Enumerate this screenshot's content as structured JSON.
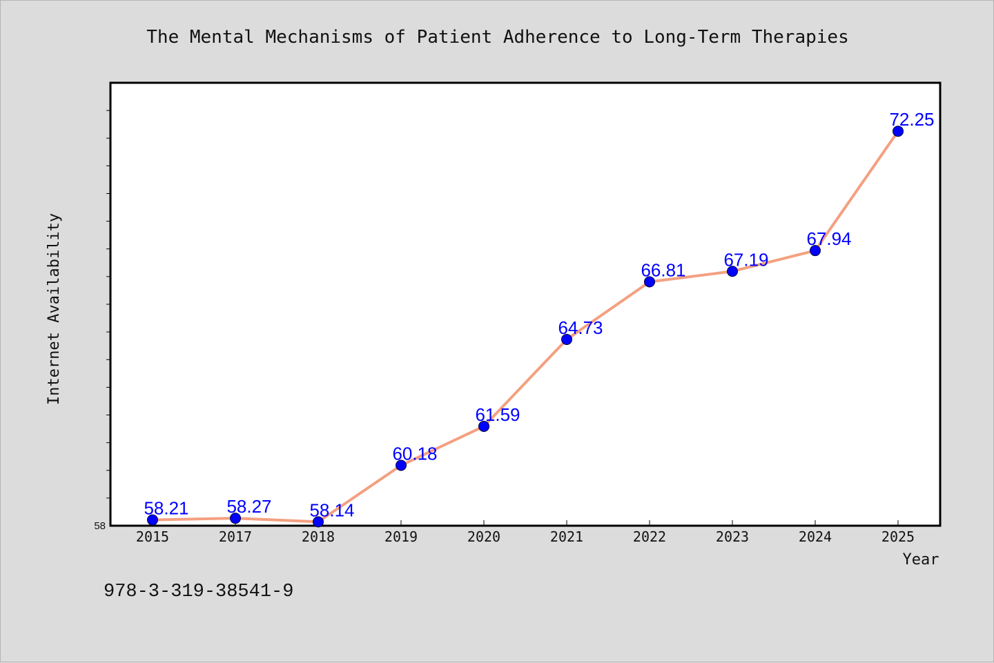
{
  "colors": {
    "background": "#dcdcdc",
    "plot_background": "#ffffff",
    "line": "#f4a080",
    "marker": "#0000ff",
    "data_label": "#0000ff"
  },
  "footer": {
    "isbn": "978-3-319-38541-9"
  },
  "chart_data": {
    "type": "line",
    "title": "The Mental Mechanisms of Patient Adherence to Long-Term Therapies",
    "xlabel": "Year",
    "ylabel": "Internet Availability",
    "categories": [
      "2015",
      "2017",
      "2018",
      "2019",
      "2020",
      "2021",
      "2022",
      "2023",
      "2024",
      "2025"
    ],
    "series": [
      {
        "values": [
          58.21,
          58.27,
          58.14,
          60.18,
          61.59,
          64.73,
          66.81,
          67.19,
          67.94,
          72.25
        ]
      }
    ],
    "data_labels": [
      "58.21",
      "58.27",
      "58.14",
      "60.18",
      "61.59",
      "64.73",
      "66.81",
      "67.19",
      "67.94",
      "72.25"
    ],
    "ylim": [
      58,
      74
    ],
    "ytick_labels": [
      "58"
    ],
    "minor_tick_step": 1,
    "grid": false,
    "legend": "none"
  }
}
